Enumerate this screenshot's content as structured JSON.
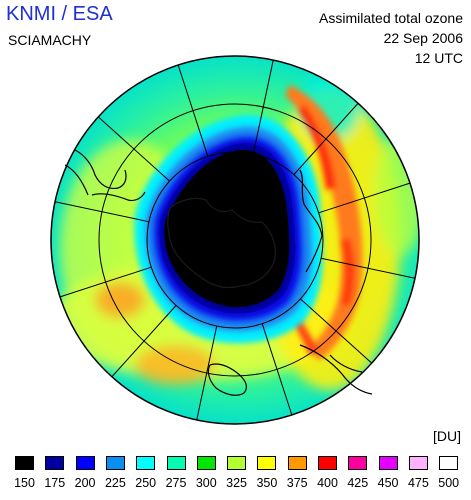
{
  "header": {
    "brand": "KNMI / ESA",
    "instrument": "SCIAMACHY",
    "product_line1": "Assimilated total ozone",
    "date": "22 Sep 2006",
    "time": "12 UTC"
  },
  "map": {
    "projection": "polar-orthographic-south",
    "meridian_lines": 12,
    "latitude_circles": 2,
    "features": [
      "ozone-hole",
      "antarctica-coastline",
      "south-america-coastline",
      "africa-coastline",
      "new-zealand-coastline"
    ]
  },
  "legend": {
    "unit": "[DU]",
    "items": [
      {
        "label": "150",
        "color": "#000000"
      },
      {
        "label": "175",
        "color": "#0000a0"
      },
      {
        "label": "200",
        "color": "#0000ff"
      },
      {
        "label": "225",
        "color": "#0a8ff0"
      },
      {
        "label": "250",
        "color": "#00ffff"
      },
      {
        "label": "275",
        "color": "#00ffb0"
      },
      {
        "label": "300",
        "color": "#00e600"
      },
      {
        "label": "325",
        "color": "#b2ff32"
      },
      {
        "label": "350",
        "color": "#ffff00"
      },
      {
        "label": "375",
        "color": "#ff9900"
      },
      {
        "label": "400",
        "color": "#ff0000"
      },
      {
        "label": "425",
        "color": "#ff00a0"
      },
      {
        "label": "450",
        "color": "#e400ff"
      },
      {
        "label": "475",
        "color": "#ffb2ff"
      },
      {
        "label": "500",
        "color": "#ffffff"
      }
    ]
  }
}
